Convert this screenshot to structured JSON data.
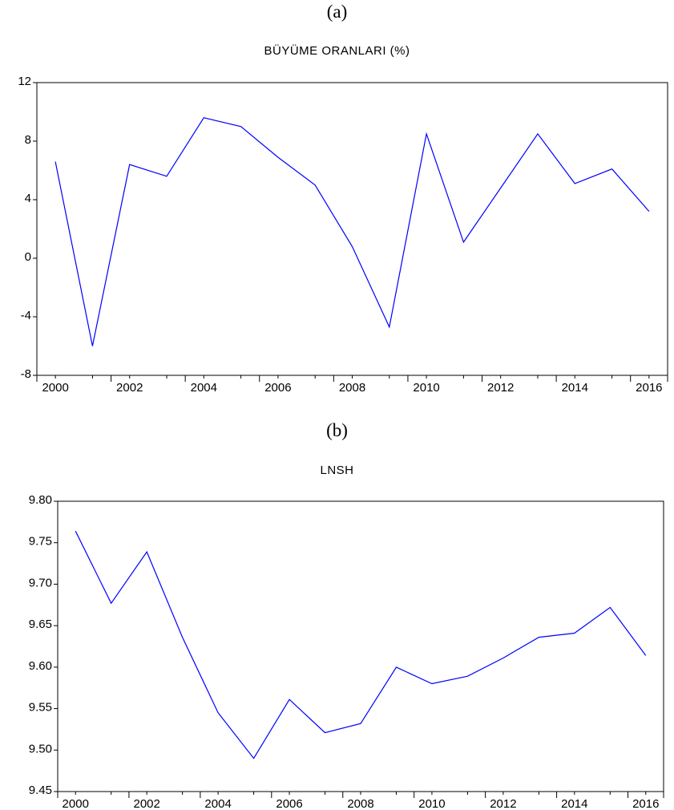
{
  "panels": [
    {
      "label": "(a)"
    },
    {
      "label": "(b)"
    }
  ],
  "chart_data": [
    {
      "type": "line",
      "title": "BÜYÜME ORANLARI (%)",
      "xlabel": "",
      "ylabel": "",
      "x": [
        2000,
        2001,
        2002,
        2003,
        2004,
        2005,
        2006,
        2007,
        2008,
        2009,
        2010,
        2011,
        2012,
        2013,
        2014,
        2015,
        2016
      ],
      "x_ticks": [
        2000,
        2002,
        2004,
        2006,
        2008,
        2010,
        2012,
        2014,
        2016
      ],
      "y_ticks": [
        12,
        8,
        4,
        0,
        -4,
        -8
      ],
      "y_tick_labels": [
        "12",
        "8",
        "4",
        "0",
        "-4",
        "-8"
      ],
      "ylim": [
        -8,
        12
      ],
      "xlim": [
        1999.5,
        2016.5
      ],
      "grid": false,
      "series": [
        {
          "color": "#0000ff",
          "values": [
            6.6,
            -6.0,
            6.4,
            5.6,
            9.6,
            9.0,
            6.9,
            5.0,
            0.8,
            -4.7,
            8.5,
            1.1,
            4.8,
            8.5,
            5.1,
            6.1,
            3.2
          ]
        }
      ]
    },
    {
      "type": "line",
      "title": "LNSH",
      "xlabel": "",
      "ylabel": "",
      "x": [
        2000,
        2001,
        2002,
        2003,
        2004,
        2005,
        2006,
        2007,
        2008,
        2009,
        2010,
        2011,
        2012,
        2013,
        2014,
        2015,
        2016
      ],
      "x_ticks": [
        2000,
        2002,
        2004,
        2006,
        2008,
        2010,
        2012,
        2014,
        2016
      ],
      "y_ticks": [
        9.8,
        9.75,
        9.7,
        9.65,
        9.6,
        9.55,
        9.5,
        9.45
      ],
      "y_tick_labels": [
        "9.80",
        "9.75",
        "9.70",
        "9.65",
        "9.60",
        "9.55",
        "9.50",
        "9.45"
      ],
      "ylim": [
        9.45,
        9.8
      ],
      "xlim": [
        1999.5,
        2016.5
      ],
      "grid": false,
      "series": [
        {
          "color": "#0000ff",
          "values": [
            9.764,
            9.677,
            9.739,
            9.636,
            9.545,
            9.49,
            9.561,
            9.521,
            9.532,
            9.6,
            9.58,
            9.589,
            9.611,
            9.636,
            9.641,
            9.672,
            9.614
          ]
        }
      ]
    }
  ]
}
